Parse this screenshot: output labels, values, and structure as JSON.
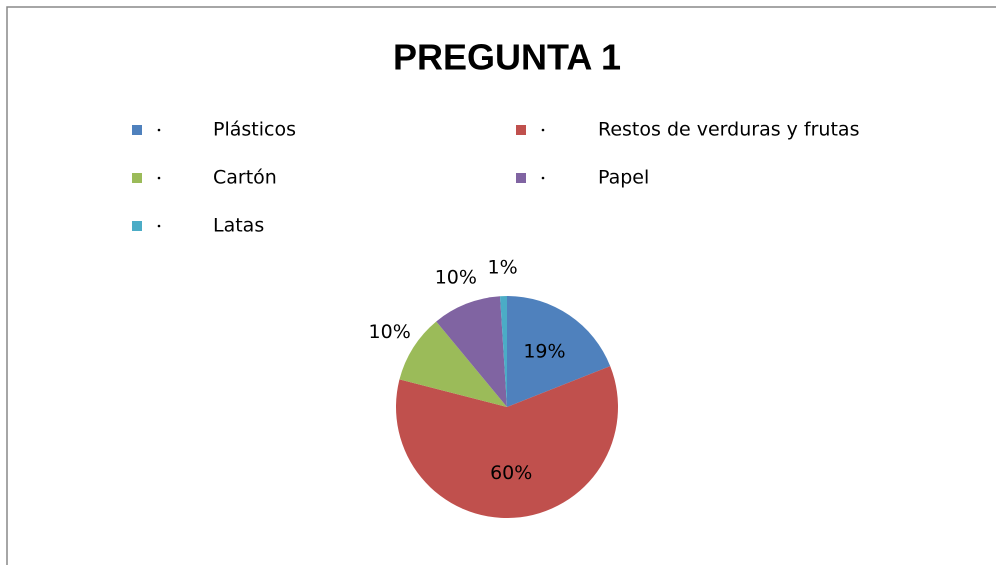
{
  "chart_data": {
    "type": "pie",
    "title": "PREGUNTA 1",
    "categories": [
      "Plásticos",
      "Restos de verduras y frutas",
      "Cartón",
      "Papel",
      "Latas"
    ],
    "values": [
      19,
      60,
      10,
      10,
      1
    ],
    "value_labels": [
      "19%",
      "60%",
      "10%",
      "10%",
      "1%"
    ],
    "colors": [
      "#4f81bd",
      "#c0504d",
      "#9bbb59",
      "#8064a2",
      "#4bacc6"
    ]
  }
}
